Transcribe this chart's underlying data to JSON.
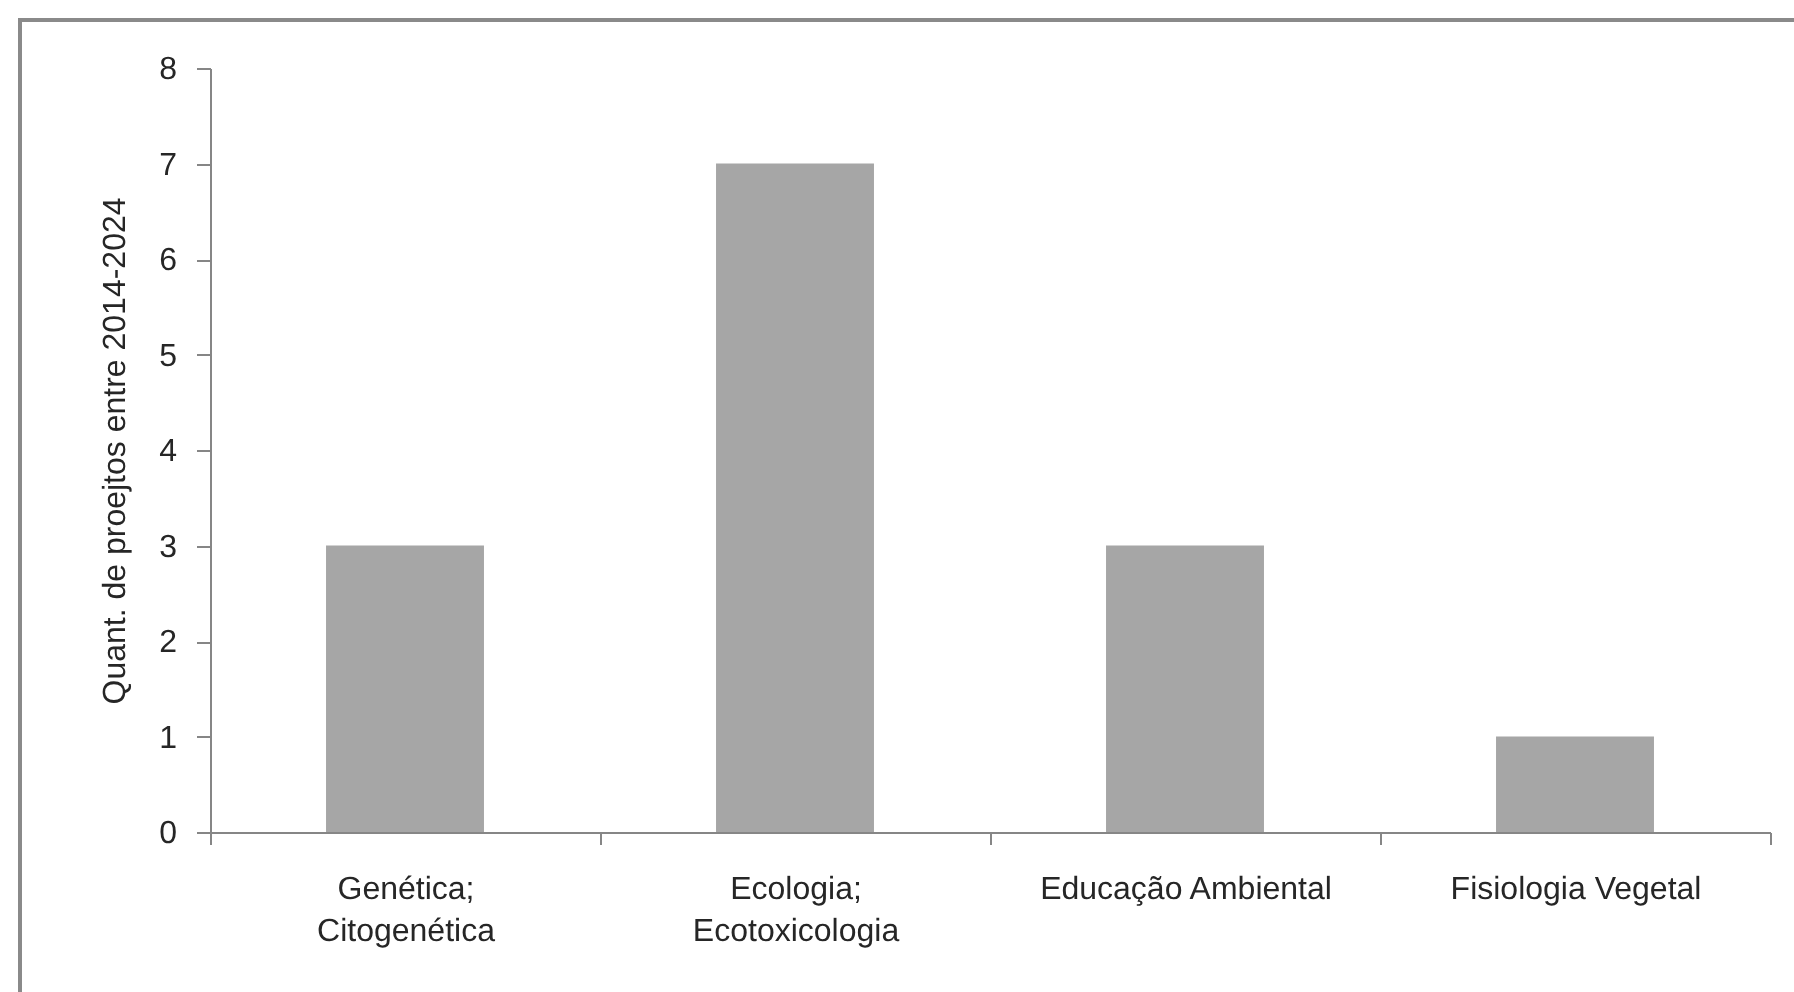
{
  "chart_data": {
    "type": "bar",
    "ylabel": "Quant. de proejtos entre 2014-2024",
    "categories": [
      "Genética; Citogenética",
      "Ecologia; Ecotoxicologia",
      "Educação Ambiental",
      "Fisiologia Vegetal"
    ],
    "values": [
      3,
      7,
      3,
      1
    ],
    "color": "#a6a6a6",
    "ylim": [
      0,
      8
    ],
    "yticks": [
      0,
      1,
      2,
      3,
      4,
      5,
      6,
      7,
      8
    ],
    "grid": false
  }
}
